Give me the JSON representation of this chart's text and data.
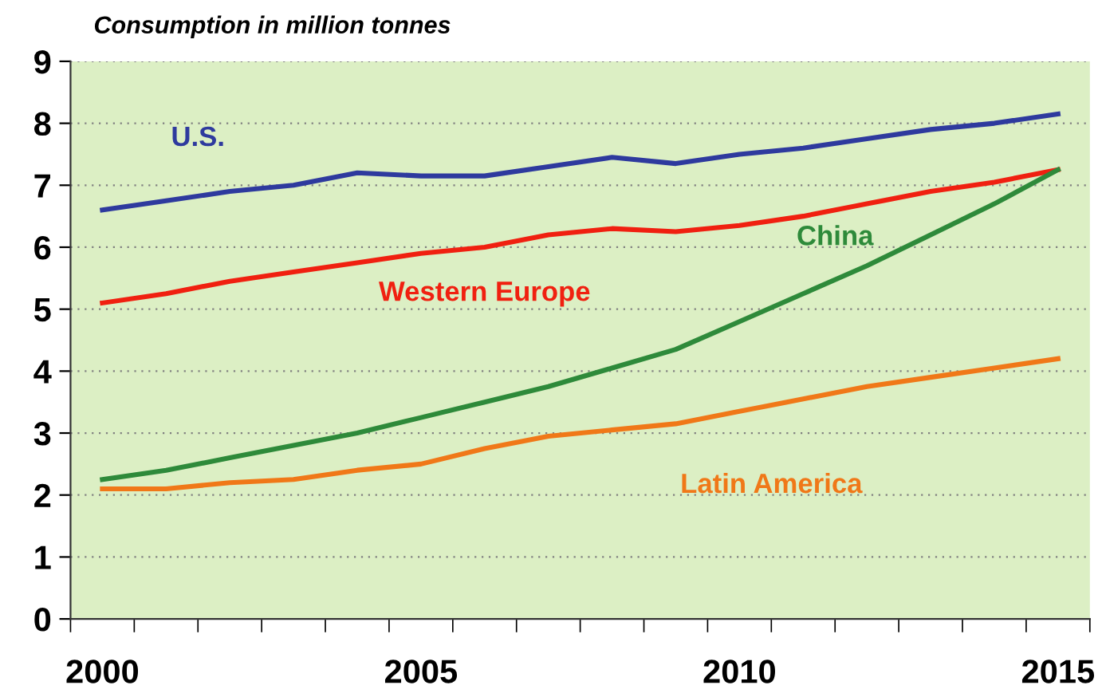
{
  "chart_data": {
    "type": "line",
    "ylabel": "Consumption in million tonnes",
    "categories": [
      "2000",
      null,
      null,
      null,
      null,
      "2005",
      null,
      null,
      null,
      null,
      "2010",
      null,
      null,
      null,
      null,
      "2015"
    ],
    "series": [
      {
        "name": "U.S.",
        "color": "#2e3a9e",
        "values": [
          6.6,
          6.75,
          6.9,
          7.0,
          7.2,
          7.15,
          7.15,
          7.3,
          7.45,
          7.35,
          7.5,
          7.6,
          7.75,
          7.9,
          8.0,
          8.15
        ]
      },
      {
        "name": "Western Europe",
        "color": "#f02010",
        "values": [
          5.1,
          5.25,
          5.45,
          5.6,
          5.75,
          5.9,
          6.0,
          6.2,
          6.3,
          6.25,
          6.35,
          6.5,
          6.7,
          6.9,
          7.05,
          7.25
        ]
      },
      {
        "name": "China",
        "color": "#2e8a3a",
        "values": [
          2.25,
          2.4,
          2.6,
          2.8,
          3.0,
          3.25,
          3.5,
          3.75,
          4.05,
          4.35,
          4.8,
          5.25,
          5.7,
          6.2,
          6.7,
          7.25
        ]
      },
      {
        "name": "Latin America",
        "color": "#f07818",
        "values": [
          2.1,
          2.1,
          2.2,
          2.25,
          2.4,
          2.5,
          2.75,
          2.95,
          3.05,
          3.15,
          3.35,
          3.55,
          3.75,
          3.9,
          4.05,
          4.2
        ]
      }
    ],
    "ylim": [
      0,
      9
    ],
    "yticks": [
      0,
      1,
      2,
      3,
      4,
      5,
      6,
      7,
      8,
      9
    ],
    "grid": "y",
    "legend": false,
    "marker": "none",
    "line_style": "solid"
  }
}
